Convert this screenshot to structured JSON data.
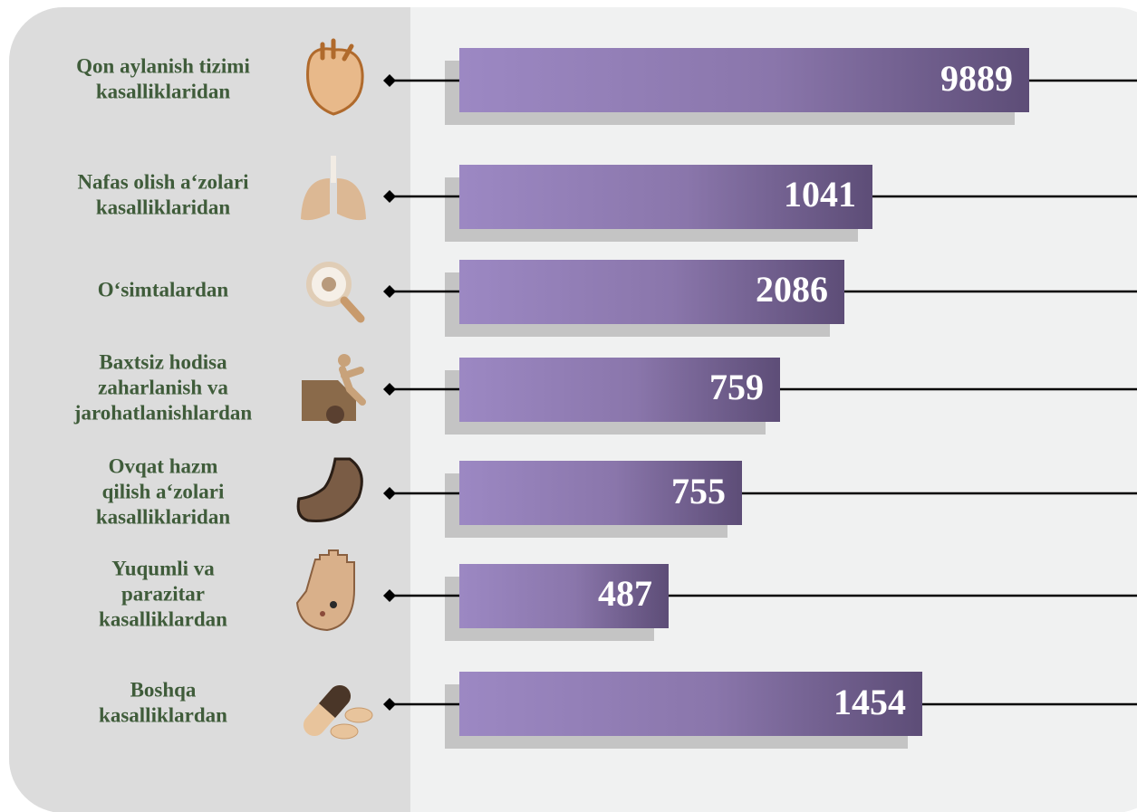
{
  "items": [
    {
      "label": [
        "Qon aylanish tizimi",
        "kasalliklaridan"
      ],
      "value": "9889"
    },
    {
      "label": [
        "Nafas olish a‘zolari",
        "kasalliklaridan"
      ],
      "value": "1041"
    },
    {
      "label": [
        "O‘simtalardan"
      ],
      "value": "2086"
    },
    {
      "label": [
        "Baxtsiz hodisa",
        "zaharlanish va",
        "jarohatlanishlardan"
      ],
      "value": "759"
    },
    {
      "label": [
        "Ovqat hazm",
        "qilish a‘zolari",
        "kasalliklaridan"
      ],
      "value": "755"
    },
    {
      "label": [
        "Yuqumli va",
        "parazitar",
        "kasalliklardan"
      ],
      "value": "487"
    },
    {
      "label": [
        "Boshqa",
        "kasalliklardan"
      ],
      "value": "1454"
    }
  ]
}
